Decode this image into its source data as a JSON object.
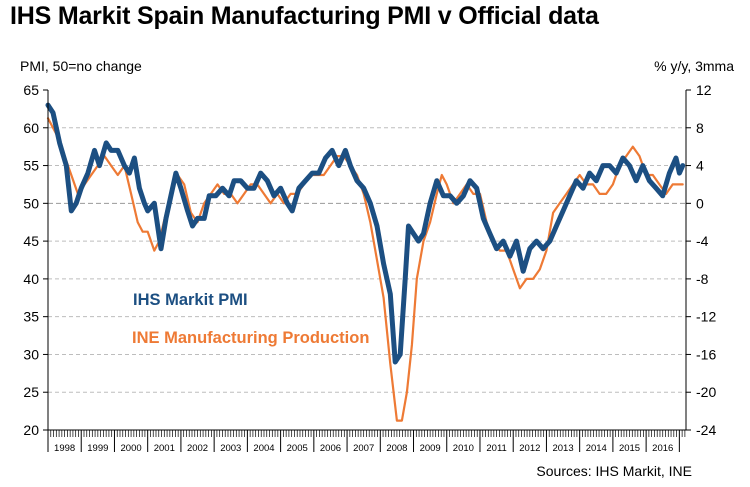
{
  "title": "IHS Markit Spain Manufacturing PMI v Official data",
  "source": "Sources: IHS Markit, INE",
  "colors": {
    "pmi": "#1c4f82",
    "ine": "#ee7a35",
    "grid": "#bdbdbd",
    "axis": "#000000"
  },
  "chart_data": {
    "type": "line",
    "title": "IHS Markit Spain Manufacturing PMI v Official data",
    "ylabel": "PMI, 50=no change",
    "y2label": "% y/y, 3mma",
    "ylim": [
      20,
      65
    ],
    "y2lim": [
      -24,
      12
    ],
    "yticks": [
      "20",
      "25",
      "30",
      "35",
      "40",
      "45",
      "50",
      "55",
      "60",
      "65"
    ],
    "y2ticks": [
      "-24",
      "-20",
      "-16",
      "-12",
      "-8",
      "-4",
      "0",
      "4",
      "8",
      "12"
    ],
    "x_range": [
      1998.0,
      2017.2
    ],
    "years": [
      "1998",
      "1999",
      "2000",
      "2001",
      "2002",
      "2003",
      "2004",
      "2005",
      "2006",
      "2007",
      "2008",
      "2009",
      "2010",
      "2011",
      "2012",
      "2013",
      "2014",
      "2015",
      "2016"
    ],
    "series": [
      {
        "name": "IHS Markit PMI",
        "axis": "left",
        "x": [
          1998.0,
          1998.15,
          1998.35,
          1998.55,
          1998.7,
          1998.85,
          1999.0,
          1999.2,
          1999.4,
          1999.55,
          1999.75,
          1999.9,
          2000.1,
          2000.3,
          2000.45,
          2000.6,
          2000.75,
          2000.9,
          2001.0,
          2001.2,
          2001.4,
          2001.55,
          2001.7,
          2001.85,
          2002.0,
          2002.2,
          2002.35,
          2002.5,
          2002.7,
          2002.85,
          2003.05,
          2003.25,
          2003.45,
          2003.6,
          2003.8,
          2004.0,
          2004.2,
          2004.4,
          2004.6,
          2004.8,
          2005.0,
          2005.2,
          2005.35,
          2005.55,
          2005.75,
          2005.95,
          2006.15,
          2006.35,
          2006.55,
          2006.75,
          2006.95,
          2007.1,
          2007.3,
          2007.5,
          2007.7,
          2007.9,
          2008.1,
          2008.3,
          2008.45,
          2008.6,
          2008.75,
          2008.85,
          2009.0,
          2009.15,
          2009.3,
          2009.5,
          2009.7,
          2009.9,
          2010.1,
          2010.3,
          2010.5,
          2010.7,
          2010.9,
          2011.1,
          2011.3,
          2011.5,
          2011.7,
          2011.9,
          2012.1,
          2012.3,
          2012.5,
          2012.7,
          2012.9,
          2013.1,
          2013.3,
          2013.5,
          2013.7,
          2013.9,
          2014.1,
          2014.3,
          2014.5,
          2014.7,
          2014.9,
          2015.1,
          2015.3,
          2015.5,
          2015.7,
          2015.9,
          2016.1,
          2016.3,
          2016.5,
          2016.7,
          2016.9,
          2017.0,
          2017.1
        ],
        "values": [
          63,
          62,
          58,
          55,
          49,
          50,
          52,
          54,
          57,
          55,
          58,
          57,
          57,
          55,
          54,
          56,
          52,
          50,
          49,
          50,
          44,
          48,
          51,
          54,
          52,
          49,
          47,
          48,
          48,
          51,
          51,
          52,
          51,
          53,
          53,
          52,
          52,
          54,
          53,
          51,
          52,
          50,
          49,
          52,
          53,
          54,
          54,
          56,
          57,
          55,
          57,
          55,
          53,
          52,
          50,
          47,
          42,
          38,
          29,
          30,
          40,
          47,
          46,
          45,
          46,
          50,
          53,
          51,
          51,
          50,
          51,
          53,
          52,
          48,
          46,
          44,
          45,
          43,
          45,
          41,
          44,
          45,
          44,
          45,
          47,
          49,
          51,
          53,
          52,
          54,
          53,
          55,
          55,
          54,
          56,
          55,
          53,
          55,
          53,
          52,
          51,
          54,
          56,
          54,
          55
        ]
      },
      {
        "name": "INE Manufacturing Production",
        "axis": "right",
        "x": [
          1998.0,
          1998.15,
          1998.3,
          1998.5,
          1998.7,
          1998.9,
          1999.1,
          1999.3,
          1999.5,
          1999.7,
          1999.9,
          2000.1,
          2000.3,
          2000.5,
          2000.7,
          2000.85,
          2001.0,
          2001.2,
          2001.35,
          2001.55,
          2001.7,
          2001.9,
          2002.1,
          2002.3,
          2002.5,
          2002.7,
          2002.9,
          2003.1,
          2003.3,
          2003.5,
          2003.7,
          2003.9,
          2004.1,
          2004.3,
          2004.5,
          2004.7,
          2004.9,
          2005.1,
          2005.3,
          2005.5,
          2005.7,
          2005.9,
          2006.1,
          2006.3,
          2006.5,
          2006.7,
          2006.9,
          2007.1,
          2007.3,
          2007.5,
          2007.7,
          2007.9,
          2008.1,
          2008.3,
          2008.5,
          2008.65,
          2008.8,
          2008.95,
          2009.1,
          2009.3,
          2009.5,
          2009.7,
          2009.85,
          2010.0,
          2010.2,
          2010.4,
          2010.6,
          2010.8,
          2011.0,
          2011.2,
          2011.4,
          2011.6,
          2011.8,
          2012.0,
          2012.2,
          2012.4,
          2012.6,
          2012.8,
          2013.0,
          2013.2,
          2013.4,
          2013.6,
          2013.8,
          2014.0,
          2014.2,
          2014.4,
          2014.6,
          2014.8,
          2015.0,
          2015.2,
          2015.4,
          2015.6,
          2015.8,
          2016.0,
          2016.2,
          2016.4,
          2016.6,
          2016.8,
          2017.0,
          2017.1
        ],
        "values": [
          9,
          8,
          7,
          5,
          3,
          1,
          2,
          3,
          4,
          5,
          4,
          3,
          4,
          1,
          -2,
          -3,
          -3,
          -5,
          -4,
          -1,
          1,
          3,
          2,
          -1,
          -2,
          0,
          1,
          2,
          1,
          1,
          0,
          1,
          2,
          2,
          1,
          0,
          1,
          0,
          1,
          1,
          2,
          3,
          3,
          3,
          4,
          5,
          5,
          4,
          3,
          1,
          -2,
          -6,
          -10,
          -17,
          -23,
          -23,
          -20,
          -15,
          -8,
          -4,
          -2,
          1,
          3,
          2,
          0,
          1,
          2,
          1,
          1,
          -2,
          -4,
          -5,
          -5,
          -7,
          -9,
          -8,
          -8,
          -7,
          -5,
          -1,
          0,
          1,
          2,
          3,
          2,
          2,
          1,
          1,
          2,
          4,
          5,
          6,
          5,
          3,
          3,
          2,
          1,
          2,
          2,
          2
        ]
      }
    ]
  }
}
